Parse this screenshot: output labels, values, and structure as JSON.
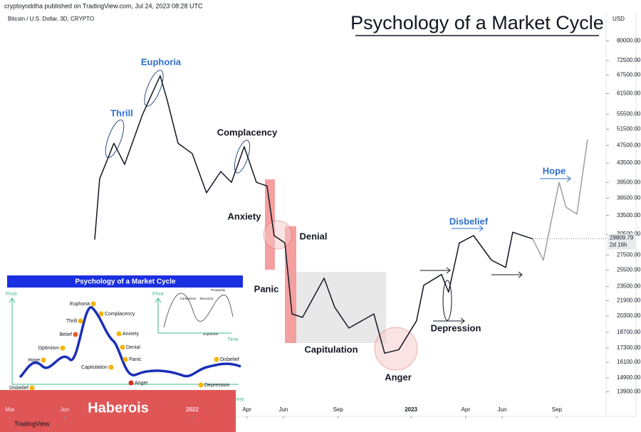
{
  "header": {
    "publisher": "cryptoyoddha published on TradingView.com, Jul 24, 2023 08:28 UTC",
    "symbol": "Bitcoin / U.S. Dollar, 3D, CRYPTO",
    "currency": "USD"
  },
  "chart_data": {
    "type": "line",
    "title": "Psychology of a Market Cycle",
    "log_scale": true,
    "grid": false,
    "x": [
      4.65,
      4.92,
      5.7,
      6.29,
      7.27,
      8.24,
      8.63,
      9.22,
      10,
      10.78,
      11.56,
      12.15,
      12.85,
      13.52,
      14.1,
      14.49,
      15.08,
      15.47,
      16.05,
      17.23,
      17.81,
      18.59,
      19.96,
      20.55,
      21.33,
      22.3,
      22.7,
      23.67,
      24.06,
      24.65,
      25.43,
      26.41,
      27.19,
      27.58,
      28.67,
      29.26,
      30.12,
      30.5,
      31.1,
      31.68
    ],
    "series": [
      {
        "color": "#131722",
        "values": [
          29700,
          40200,
          48000,
          43200,
          55400,
          67200,
          59400,
          48000,
          45600,
          37500,
          41700,
          39500,
          47200,
          39500,
          38800,
          30300,
          29200,
          20500,
          20150,
          24500,
          21200,
          19100,
          20500,
          16850,
          17150,
          19800,
          23650,
          24950,
          22850,
          29200,
          30300,
          26800,
          25850,
          30800,
          29800,
          null,
          null,
          null,
          null,
          null
        ]
      },
      {
        "color": "#9e9e9e",
        "values": [
          null,
          null,
          null,
          null,
          null,
          null,
          null,
          null,
          null,
          null,
          null,
          null,
          null,
          null,
          null,
          null,
          null,
          null,
          null,
          null,
          null,
          null,
          null,
          null,
          null,
          null,
          null,
          null,
          null,
          null,
          null,
          null,
          null,
          null,
          29800,
          26800,
          39500,
          34900,
          33700,
          48900
        ]
      }
    ],
    "xlim": [
      -0.35,
      32.7
    ],
    "xticks": [
      {
        "value": 0,
        "label": "Mar"
      },
      {
        "value": 3,
        "label": "Jun"
      },
      {
        "value": 10,
        "label": "2022"
      },
      {
        "value": 13,
        "label": "Apr"
      },
      {
        "value": 15,
        "label": "Jun"
      },
      {
        "value": 18,
        "label": "Sep"
      },
      {
        "value": 22,
        "label": "2023"
      },
      {
        "value": 25,
        "label": "Apr"
      },
      {
        "value": 27,
        "label": "Jun"
      },
      {
        "value": 30,
        "label": "Sep"
      }
    ],
    "ylim": [
      12300,
      92000
    ],
    "yticks": [
      {
        "value": 80000,
        "label": "80000.00"
      },
      {
        "value": 72500,
        "label": "72500.00"
      },
      {
        "value": 67500,
        "label": "67500.00"
      },
      {
        "value": 61500,
        "label": "61500.00"
      },
      {
        "value": 55500,
        "label": "55500.00"
      },
      {
        "value": 51500,
        "label": "51500.00"
      },
      {
        "value": 47500,
        "label": "47500.00"
      },
      {
        "value": 43500,
        "label": "43500.00"
      },
      {
        "value": 39500,
        "label": "39500.00"
      },
      {
        "value": 36500,
        "label": "36500.00"
      },
      {
        "value": 33500,
        "label": "33500.00"
      },
      {
        "value": 30500,
        "label": "30500.00"
      },
      {
        "value": 27500,
        "label": "27500.00"
      },
      {
        "value": 25500,
        "label": "25500.00"
      },
      {
        "value": 23500,
        "label": "23500.00"
      },
      {
        "value": 21900,
        "label": "21900.00"
      },
      {
        "value": 20300,
        "label": "20300.00"
      },
      {
        "value": 18700,
        "label": "18700.00"
      },
      {
        "value": 17300,
        "label": "17300.00"
      },
      {
        "value": 16100,
        "label": "16100.00"
      },
      {
        "value": 14900,
        "label": "14900.00"
      },
      {
        "value": 13900,
        "label": "13900.00"
      }
    ],
    "last_price": {
      "value": 29809.79,
      "label": "29809.79"
    },
    "countdown": "2d 16h",
    "annotations": [
      {
        "text": "Thrill",
        "color": "#2f6fd1"
      },
      {
        "text": "Euphoria",
        "color": "#2f6fd1"
      },
      {
        "text": "Complacency",
        "color": "#131722"
      },
      {
        "text": "Anxiety",
        "color": "#131722"
      },
      {
        "text": "Denial",
        "color": "#131722"
      },
      {
        "text": "Panic",
        "color": "#131722"
      },
      {
        "text": "Capitulation",
        "color": "#131722"
      },
      {
        "text": "Anger",
        "color": "#131722"
      },
      {
        "text": "Depression",
        "color": "#131722"
      },
      {
        "text": "Disbelief",
        "color": "#2f6fd1"
      },
      {
        "text": "Hope",
        "color": "#2f6fd1"
      }
    ]
  },
  "inset": {
    "title": "Psychology of a Market Cycle",
    "price": "Price",
    "time": "Time",
    "phases": [
      "Euphoria",
      "Complacency",
      "Thrill",
      "Anxiety",
      "Belief",
      "Denial",
      "Optimism",
      "Panic",
      "Hope",
      "Capitulation",
      "Anger",
      "Disbelief",
      "Depression",
      "Disbelief"
    ],
    "mini": {
      "price": "Price",
      "time": "Time",
      "labels": [
        "Contraction",
        "Recovery",
        "Prosperity",
        "Expansion"
      ]
    }
  },
  "watermark": "Haberois",
  "footer": "TradingView"
}
